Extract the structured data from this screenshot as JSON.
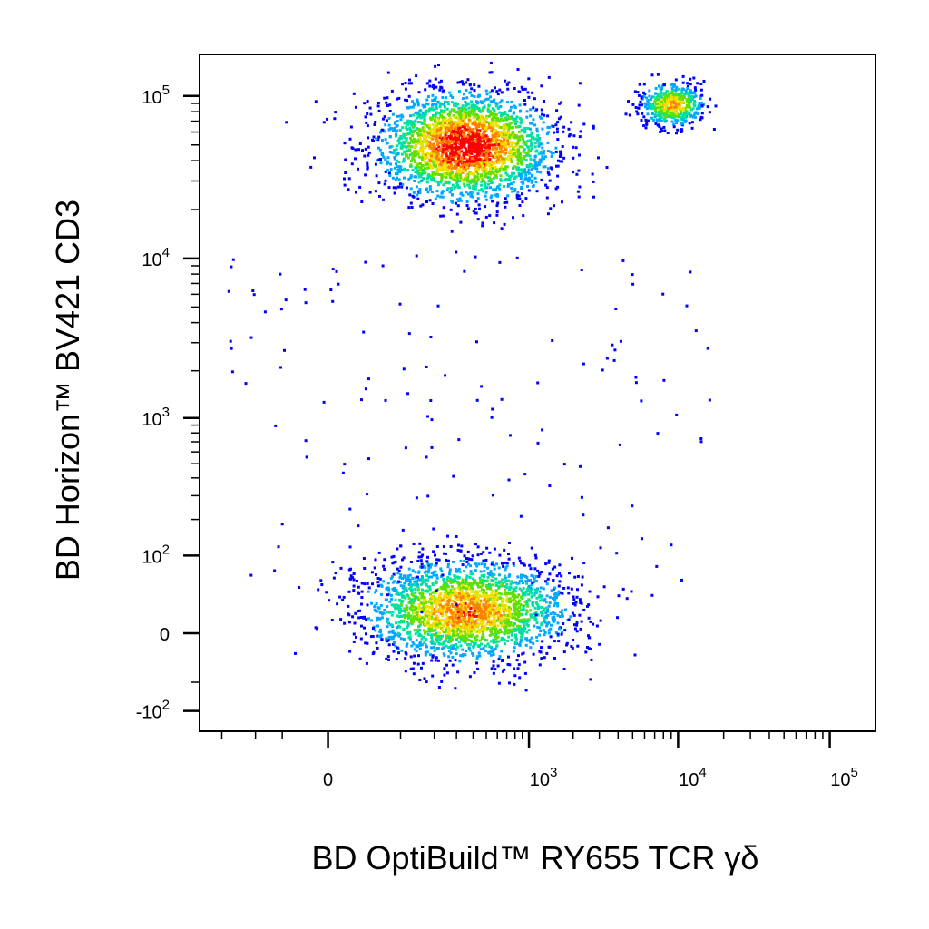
{
  "chart_data": {
    "type": "scatter",
    "subtype": "flow-cytometry-density-dot-plot",
    "title": "",
    "xlabel": "BD OptiBuild™ RY655 TCR γδ",
    "ylabel": "BD Horizon™ BV421 CD3",
    "x_scale": "biexponential",
    "y_scale": "biexponential",
    "xlim": [
      -300,
      200000
    ],
    "ylim": [
      -150,
      180000
    ],
    "x_ticks": [
      {
        "base": "0",
        "exp": "",
        "value": 0
      },
      {
        "base": "10",
        "exp": "3",
        "value": 1000
      },
      {
        "base": "10",
        "exp": "4",
        "value": 10000
      },
      {
        "base": "10",
        "exp": "5",
        "value": 100000
      }
    ],
    "y_ticks": [
      {
        "base": "-10",
        "exp": "2",
        "value": -100
      },
      {
        "base": "0",
        "exp": "",
        "value": 0
      },
      {
        "base": "10",
        "exp": "2",
        "value": 100
      },
      {
        "base": "10",
        "exp": "3",
        "value": 1000
      },
      {
        "base": "10",
        "exp": "4",
        "value": 10000
      },
      {
        "base": "10",
        "exp": "5",
        "value": 100000
      }
    ],
    "grid": false,
    "legend": "none",
    "color_scale": [
      "#0000ff",
      "#00a8ff",
      "#00e0a0",
      "#60e000",
      "#f0e000",
      "#ff8000",
      "#ff0000"
    ],
    "populations": [
      {
        "description": "CD3+ TCR γδ−",
        "center_x": 350,
        "center_y": 50000,
        "spread_x": 300,
        "spread_y": 20000,
        "relative_density": 1.0
      },
      {
        "description": "CD3+ TCR γδ+",
        "center_x": 9000,
        "center_y": 90000,
        "spread_x": 2500,
        "spread_y": 15000,
        "relative_density": 0.25
      },
      {
        "description": "CD3− TCR γδ−",
        "center_x": 350,
        "center_y": 20,
        "spread_x": 300,
        "spread_y": 50,
        "relative_density": 0.8
      }
    ]
  }
}
